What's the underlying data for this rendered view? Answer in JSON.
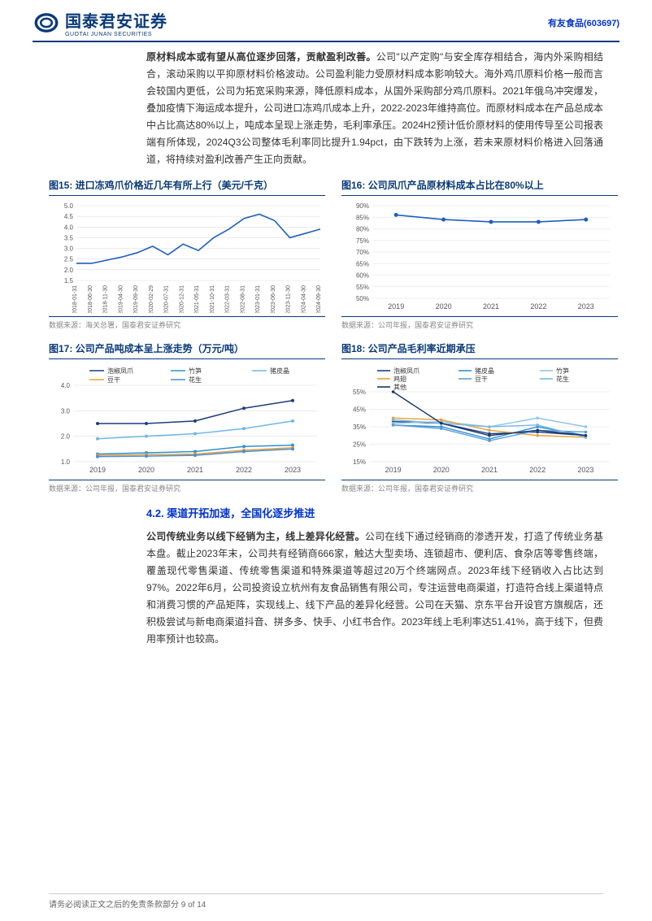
{
  "header": {
    "logo_zh": "国泰君安证券",
    "logo_en": "GUOTAI JUNAN SECURITIES",
    "stock": "有友食品(603697)"
  },
  "intro": {
    "bold": "原材料成本或有望从高位逐步回落，贡献盈利改善。",
    "text": "公司\"以产定购\"与安全库存相结合，海内外采购相结合，滚动采购以平抑原材料价格波动。公司盈利能力受原材料成本影响较大。海外鸡爪原料价格一般而言会较国内更低，公司为拓宽采购来源，降低原料成本，从国外采购部分鸡爪原料。2021年俄乌冲突爆发，叠加疫情下海运成本提升，公司进口冻鸡爪成本上升，2022-2023年维持高位。而原材料成本在产品总成本中占比高达80%以上，吨成本呈现上涨走势，毛利率承压。2024H2预计低价原材料的使用传导至公司报表端有所体现，2024Q3公司整体毛利率同比提升1.94pct，由下跌转为上涨，若未来原材料价格进入回落通道，将持续对盈利改善产生正向贡献。"
  },
  "fig15": {
    "title": "图15:  进口冻鸡爪价格近几年有所上行（美元/千克）",
    "source": "数据来源：海关总署，国泰君安证券研究",
    "yticks": [
      1.5,
      2.0,
      2.5,
      3.0,
      3.5,
      4.0,
      4.5,
      5.0
    ],
    "xlabels": [
      "2018-01-31",
      "2018-06-30",
      "2018-11-30",
      "2019-04-30",
      "2019-09-30",
      "2020-02-29",
      "2020-07-31",
      "2020-12-31",
      "2021-05-31",
      "2021-10-31",
      "2022-03-31",
      "2022-08-31",
      "2023-01-31",
      "2023-06-30",
      "2023-11-30",
      "2024-04-30",
      "2024-09-30"
    ],
    "values": [
      2.3,
      2.3,
      2.45,
      2.6,
      2.8,
      3.1,
      2.7,
      3.2,
      2.9,
      3.5,
      3.9,
      4.4,
      4.6,
      4.3,
      3.5,
      3.7,
      3.9
    ],
    "color": "#1f5fbf"
  },
  "fig16": {
    "title": "图16:  公司凤爪产品原材料成本占比在80%以上",
    "source": "数据来源：公司年报，国泰君安证券研究",
    "yticks": [
      50,
      55,
      60,
      65,
      70,
      75,
      80,
      85,
      90
    ],
    "ytick_labels": [
      "50%",
      "55%",
      "60%",
      "65%",
      "70%",
      "75%",
      "80%",
      "85%",
      "90%"
    ],
    "xlabels": [
      "2019",
      "2020",
      "2021",
      "2022",
      "2023"
    ],
    "values": [
      86,
      84,
      83,
      83,
      84
    ],
    "color": "#1f5fbf"
  },
  "fig17": {
    "title": "图17:  公司产品吨成本呈上涨走势（万元/吨）",
    "source": "数据来源：公司年报，国泰君安证券研究",
    "yticks": [
      1.0,
      2.0,
      3.0,
      4.0
    ],
    "xlabels": [
      "2019",
      "2020",
      "2021",
      "2022",
      "2023"
    ],
    "legend": [
      {
        "name": "泡椒凤爪",
        "color": "#1f3d7a"
      },
      {
        "name": "竹笋",
        "color": "#2f8fd4"
      },
      {
        "name": "猪皮晶",
        "color": "#6fb7e6"
      },
      {
        "name": "豆干",
        "color": "#e8a23a"
      },
      {
        "name": "花生",
        "color": "#4a8ed4"
      }
    ],
    "series": {
      "泡椒凤爪": [
        2.5,
        2.5,
        2.6,
        3.1,
        3.4
      ],
      "竹笋": [
        1.3,
        1.35,
        1.4,
        1.6,
        1.65
      ],
      "猪皮晶": [
        1.9,
        2.0,
        2.1,
        2.3,
        2.6
      ],
      "豆干": [
        1.25,
        1.28,
        1.3,
        1.45,
        1.55
      ],
      "花生": [
        1.2,
        1.22,
        1.25,
        1.4,
        1.5
      ]
    }
  },
  "fig18": {
    "title": "图18:  公司产品毛利率近期承压",
    "source": "数据来源：公司年报，国泰君安证券研究",
    "yticks": [
      15,
      25,
      35,
      45,
      55
    ],
    "ytick_labels": [
      "15%",
      "25%",
      "35%",
      "45%",
      "55%"
    ],
    "xlabels": [
      "2019",
      "2020",
      "2021",
      "2022",
      "2023"
    ],
    "legend": [
      {
        "name": "泡椒凤爪",
        "color": "#1f3d7a"
      },
      {
        "name": "猪皮晶",
        "color": "#2f8fd4"
      },
      {
        "name": "竹笋",
        "color": "#8fc4e8"
      },
      {
        "name": "鸡翅",
        "color": "#e8a23a"
      },
      {
        "name": "豆干",
        "color": "#5a9ed8"
      },
      {
        "name": "花生",
        "color": "#7ab8e2"
      },
      {
        "name": "其他",
        "color": "#15356b"
      }
    ],
    "series": {
      "泡椒凤爪": [
        38,
        37,
        31,
        32,
        30
      ],
      "猪皮晶": [
        36,
        35,
        28,
        35,
        30
      ],
      "竹笋": [
        37,
        38,
        35,
        40,
        35
      ],
      "鸡翅": [
        40,
        39,
        33,
        30,
        29
      ],
      "豆干": [
        36,
        34,
        27,
        33,
        32
      ],
      "花生": [
        39,
        37,
        35,
        36,
        29
      ],
      "其他": [
        55,
        37,
        30,
        33,
        30
      ]
    }
  },
  "section42": {
    "heading": "4.2.   渠道开拓加速，全国化逐步推进",
    "bold": "公司传统业务以线下经销为主，线上差异化经营。",
    "text": "公司在线下通过经销商的渗透开发，打造了传统业务基本盘。截止2023年末，公司共有经销商666家，触达大型卖场、连锁超市、便利店、食杂店等零售终端，覆盖现代零售渠道、传统零售渠道和特殊渠道等超过20万个终端网点。2023年线下经销收入占比达到97%。2022年6月，公司投资设立杭州有友食品销售有限公司，专注运营电商渠道，打造符合线上渠道特点和消费习惯的产品矩阵，实现线上、线下产品的差异化经营。公司在天猫、京东平台开设官方旗舰店，还积极尝试与新电商渠道抖音、拼多多、快手、小红书合作。2023年线上毛利率达51.41%，高于线下，但费用率预计也较高。"
  },
  "footer": {
    "text": "请务必阅读正文之后的免责条款部分 9 of 14"
  }
}
